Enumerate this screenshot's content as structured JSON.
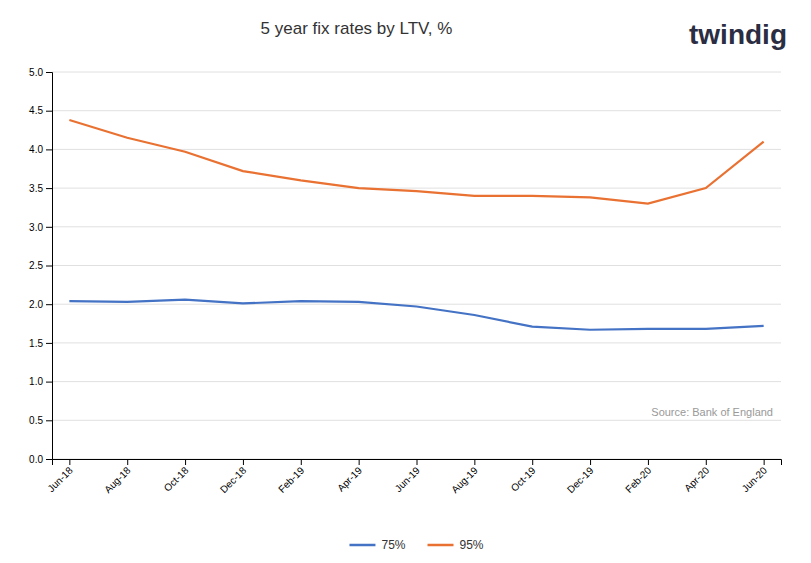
{
  "chart_data": {
    "type": "line",
    "title": "5 year fix rates by LTV, %",
    "annotations": [
      "Source: Bank of England",
      "twindig"
    ],
    "categories": [
      "Jun-18",
      "Aug-18",
      "Oct-18",
      "Dec-18",
      "Feb-19",
      "Apr-19",
      "Jun-19",
      "Aug-19",
      "Oct-19",
      "Dec-19",
      "Feb-20",
      "Apr-20",
      "Jun-20"
    ],
    "series": [
      {
        "name": "75%",
        "color": "#4472C4",
        "values": [
          2.04,
          2.03,
          2.06,
          2.01,
          2.04,
          2.03,
          1.97,
          1.86,
          1.71,
          1.67,
          1.68,
          1.68,
          1.72
        ]
      },
      {
        "name": "95%",
        "color": "#E97132",
        "values": [
          4.38,
          4.15,
          3.97,
          3.72,
          3.6,
          3.5,
          3.46,
          3.4,
          3.4,
          3.38,
          3.3,
          3.5,
          4.1
        ]
      }
    ],
    "ylim": [
      0.0,
      5.0
    ],
    "yticks": [
      {
        "value": 0.0,
        "label": "0.0"
      },
      0.5,
      {
        "value": 1.0,
        "label": "1.0"
      },
      1.5,
      {
        "value": 2.0,
        "label": "2.0"
      },
      2.5,
      {
        "value": 3.0,
        "label": "3.0"
      },
      3.5,
      {
        "value": 4.0,
        "label": "4.0"
      },
      4.5,
      {
        "value": 5.0,
        "label": "5.0"
      }
    ],
    "grid": true,
    "legend": "bottom"
  }
}
